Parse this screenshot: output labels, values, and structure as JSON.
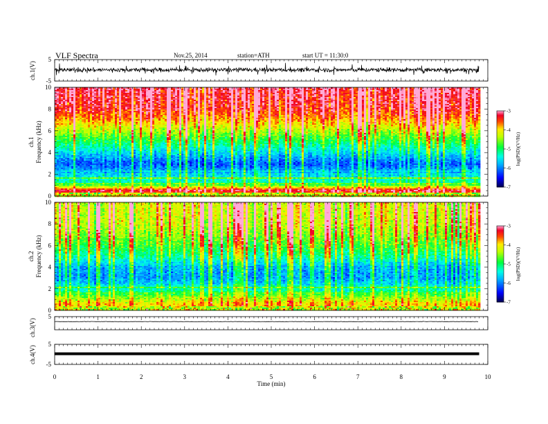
{
  "header": {
    "title": "VLF  Spectra",
    "date": "Nov.25, 2014",
    "station": "station=ATH",
    "start": "start  UT  =   11:30:0"
  },
  "chart_data": [
    {
      "type": "line",
      "panel": "ch1-waveform",
      "ylabel": "ch.1(V)",
      "ylim": [
        -5,
        5
      ],
      "yticks": [
        "5",
        "-5"
      ],
      "x_range_min": [
        0,
        9.8
      ],
      "description_values": {
        "center": 0.2,
        "amplitude_typical": 1.0,
        "amplitude_max": 2.6
      }
    },
    {
      "type": "heatmap",
      "panel": "ch1-spectrogram",
      "ylabel": "ch.1\nFrequency (kHz)",
      "ylim": [
        0,
        10
      ],
      "yticks": [
        "0",
        "2",
        "4",
        "6",
        "8",
        "10"
      ],
      "colorbar": {
        "label": "log(PSD)(V²/Hz)",
        "range": [
          -7,
          -3
        ],
        "ticks": [
          "-3",
          "-4",
          "-5",
          "-6",
          "-7"
        ]
      },
      "profile_kHz_logPSD": [
        [
          0,
          -3.6
        ],
        [
          0.6,
          -3.3
        ],
        [
          1.2,
          -5.2
        ],
        [
          2.0,
          -5.6
        ],
        [
          3.0,
          -6.2
        ],
        [
          4.0,
          -5.6
        ],
        [
          5.0,
          -5.0
        ],
        [
          6.0,
          -4.4
        ],
        [
          7.0,
          -3.8
        ],
        [
          8.0,
          -3.4
        ],
        [
          10.0,
          -3.2
        ]
      ]
    },
    {
      "type": "heatmap",
      "panel": "ch2-spectrogram",
      "ylabel": "ch.2\nFrequency (kHz)",
      "ylim": [
        0,
        10
      ],
      "yticks": [
        "0",
        "2",
        "4",
        "6",
        "8",
        "10"
      ],
      "colorbar": {
        "label": "log(PSD)(V²/Hz)",
        "range": [
          -7,
          -3
        ],
        "ticks": [
          "-3",
          "-4",
          "-5",
          "-6",
          "-7"
        ]
      },
      "profile_kHz_logPSD": [
        [
          0,
          -4.2
        ],
        [
          0.6,
          -4.0
        ],
        [
          1.2,
          -4.6
        ],
        [
          2.0,
          -5.4
        ],
        [
          3.0,
          -5.9
        ],
        [
          4.0,
          -5.8
        ],
        [
          5.0,
          -5.2
        ],
        [
          6.0,
          -4.8
        ],
        [
          7.0,
          -4.5
        ],
        [
          8.0,
          -4.3
        ],
        [
          10.0,
          -4.2
        ]
      ]
    },
    {
      "type": "line",
      "panel": "ch3-waveform",
      "ylabel": "ch.3(V)",
      "ylim": [
        -5,
        5
      ],
      "yticks": [
        "5"
      ],
      "description_values": {
        "center": 1.2,
        "amplitude_typical": 0.15
      }
    },
    {
      "type": "line",
      "panel": "ch4-waveform",
      "ylabel": "ch.4(V)",
      "ylim": [
        -5,
        5
      ],
      "yticks": [
        "5",
        "-5"
      ],
      "description_values": {
        "center": 0.3,
        "amplitude_typical": 0.3
      }
    }
  ],
  "xaxis": {
    "label": "Time  (min)",
    "ticks": [
      "0",
      "1",
      "2",
      "3",
      "4",
      "5",
      "6",
      "7",
      "8",
      "9",
      "10"
    ],
    "range": [
      0,
      10
    ]
  },
  "colors": {
    "background": "#ffffff",
    "axis": "#000000",
    "colormap": [
      "#000060",
      "#0000ff",
      "#00ffff",
      "#00ff00",
      "#ffff00",
      "#ff0000",
      "#ff9ad0"
    ]
  }
}
